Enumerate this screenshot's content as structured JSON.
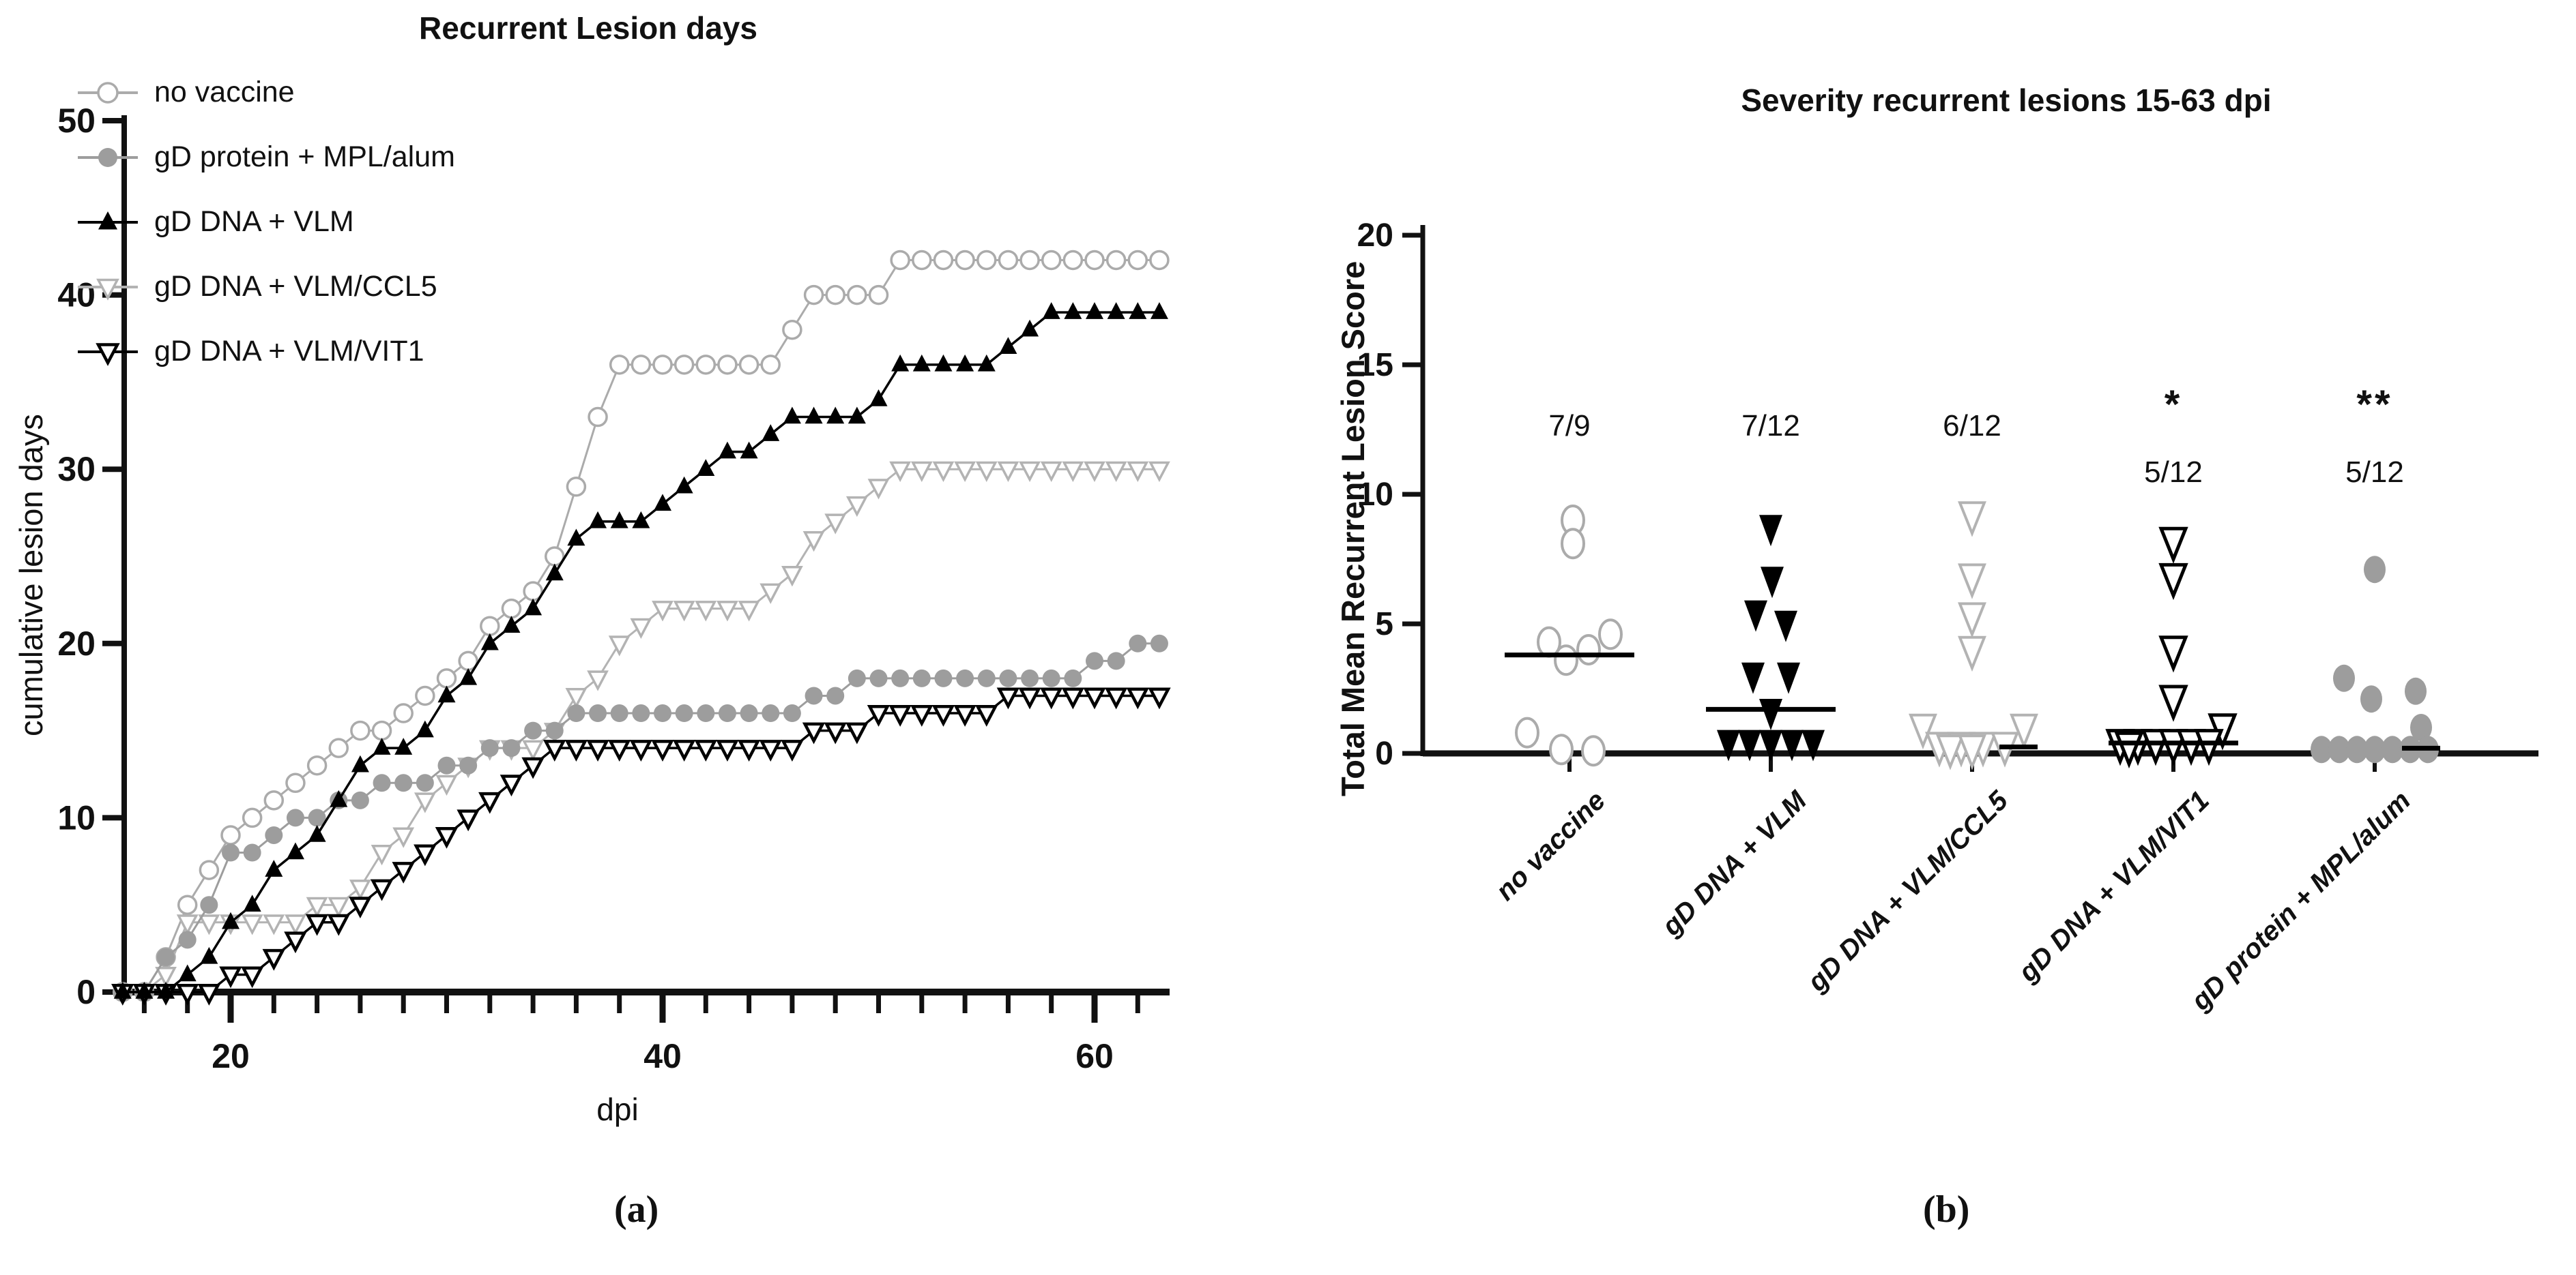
{
  "panels": {
    "a_label": "(a)",
    "b_label": "(b)"
  },
  "chart_data": [
    {
      "type": "line",
      "title": "Recurrent Lesion days",
      "xlabel": "dpi",
      "ylabel": "cumulative lesion days",
      "xlim": [
        14,
        64
      ],
      "ylim": [
        0,
        50
      ],
      "x_start": 15,
      "x_end": 63,
      "xticks_major": [
        20,
        40,
        60
      ],
      "xtick_minor_step": 2,
      "yticks": [
        0,
        10,
        20,
        30,
        40,
        50
      ],
      "grid": false,
      "legend_position": "top-left",
      "series": [
        {
          "name": "no vaccine",
          "marker": "circle-open",
          "color": "#ababab",
          "values": [
            0,
            0,
            2,
            5,
            7,
            9,
            10,
            11,
            12,
            13,
            14,
            15,
            15,
            16,
            17,
            18,
            19,
            21,
            22,
            23,
            25,
            29,
            33,
            36,
            36,
            36,
            36,
            36,
            36,
            36,
            36,
            38,
            40,
            40,
            40,
            40,
            42,
            42,
            42,
            42,
            42,
            42,
            42,
            42,
            42,
            42,
            42,
            42,
            42
          ]
        },
        {
          "name": "gD protein + MPL/alum",
          "marker": "circle-filled",
          "color": "#9d9d9d",
          "values": [
            0,
            0,
            2,
            3,
            5,
            8,
            8,
            9,
            10,
            10,
            11,
            11,
            12,
            12,
            12,
            13,
            13,
            14,
            14,
            15,
            15,
            16,
            16,
            16,
            16,
            16,
            16,
            16,
            16,
            16,
            16,
            16,
            17,
            17,
            18,
            18,
            18,
            18,
            18,
            18,
            18,
            18,
            18,
            18,
            18,
            19,
            19,
            20,
            20
          ]
        },
        {
          "name": "gD DNA + VLM",
          "marker": "triangle-up-filled",
          "color": "#000000",
          "values": [
            0,
            0,
            0,
            1,
            2,
            4,
            5,
            7,
            8,
            9,
            11,
            13,
            14,
            14,
            15,
            17,
            18,
            20,
            21,
            22,
            24,
            26,
            27,
            27,
            27,
            28,
            29,
            30,
            31,
            31,
            32,
            33,
            33,
            33,
            33,
            34,
            36,
            36,
            36,
            36,
            36,
            37,
            38,
            39,
            39,
            39,
            39,
            39,
            39
          ]
        },
        {
          "name": "gD DNA + VLM/CCL5",
          "marker": "triangle-down-open",
          "color": "#b3b3b3",
          "values": [
            0,
            0,
            1,
            4,
            4,
            4,
            4,
            4,
            4,
            5,
            5,
            6,
            8,
            9,
            11,
            12,
            13,
            14,
            14,
            14,
            15,
            17,
            18,
            20,
            21,
            22,
            22,
            22,
            22,
            22,
            23,
            24,
            26,
            27,
            28,
            29,
            30,
            30,
            30,
            30,
            30,
            30,
            30,
            30,
            30,
            30,
            30,
            30,
            30
          ]
        },
        {
          "name": "gD DNA + VLM/VIT1",
          "marker": "triangle-down-open",
          "color": "#000000",
          "values": [
            0,
            0,
            0,
            0,
            0,
            1,
            1,
            2,
            3,
            4,
            4,
            5,
            6,
            7,
            8,
            9,
            10,
            11,
            12,
            13,
            14,
            14,
            14,
            14,
            14,
            14,
            14,
            14,
            14,
            14,
            14,
            14,
            15,
            15,
            15,
            16,
            16,
            16,
            16,
            16,
            16,
            17,
            17,
            17,
            17,
            17,
            17,
            17,
            17
          ]
        }
      ]
    },
    {
      "type": "scatter",
      "title": "Severity recurrent lesions 15-63 dpi",
      "ylabel": "Total Mean Recurrent Lesion Score",
      "ylim": [
        0,
        20
      ],
      "yticks": [
        0,
        5,
        10,
        15,
        20
      ],
      "grid": false,
      "groups": [
        {
          "label": "no vaccine",
          "marker": "circle-open",
          "color": "#ababab",
          "annotation": "7/9",
          "sig": "",
          "median": 3.8,
          "points": [
            [
              9.0,
              5
            ],
            [
              8.1,
              5
            ],
            [
              4.6,
              60
            ],
            [
              4.3,
              -30
            ],
            [
              4.0,
              28
            ],
            [
              3.6,
              -5
            ],
            [
              0.8,
              -62
            ],
            [
              0.15,
              -12
            ],
            [
              0.1,
              35
            ]
          ]
        },
        {
          "label": "gD DNA + VLM",
          "marker": "triangle-down-filled",
          "color": "#000000",
          "annotation": "7/12",
          "sig": "",
          "median": 1.7,
          "points": [
            [
              8.6,
              0
            ],
            [
              6.6,
              2
            ],
            [
              5.3,
              -22
            ],
            [
              4.9,
              22
            ],
            [
              2.9,
              -26
            ],
            [
              2.9,
              26
            ],
            [
              1.5,
              0
            ],
            [
              0.3,
              -62
            ],
            [
              0.3,
              -31
            ],
            [
              0.3,
              0
            ],
            [
              0.3,
              31
            ],
            [
              0.3,
              62
            ]
          ]
        },
        {
          "label": "gD DNA + VLM/CCL5",
          "marker": "triangle-down-open",
          "color": "#b3b3b3",
          "annotation": "6/12",
          "sig": "",
          "median": 0.25,
          "points": [
            [
              9.1,
              0
            ],
            [
              6.7,
              0
            ],
            [
              5.2,
              0
            ],
            [
              3.9,
              0
            ],
            [
              0.9,
              -72
            ],
            [
              0.9,
              76
            ],
            [
              0.2,
              -48
            ],
            [
              0.2,
              -16
            ],
            [
              0.2,
              16
            ],
            [
              0.2,
              48
            ],
            [
              0.1,
              -32
            ],
            [
              0.1,
              0
            ]
          ]
        },
        {
          "label": "gD DNA + VLM/VIT1",
          "marker": "triangle-down-open",
          "color": "#000000",
          "annotation": "5/12",
          "sig": "*",
          "median": 0.4,
          "points": [
            [
              8.1,
              0
            ],
            [
              6.7,
              0
            ],
            [
              3.9,
              0
            ],
            [
              2.0,
              0
            ],
            [
              0.9,
              72
            ],
            [
              0.3,
              -78
            ],
            [
              0.3,
              -52
            ],
            [
              0.3,
              -26
            ],
            [
              0.3,
              0
            ],
            [
              0.3,
              26
            ],
            [
              0.3,
              52
            ],
            [
              0.2,
              -65
            ]
          ]
        },
        {
          "label": "gD protein + MPL/alum",
          "marker": "circle-filled",
          "color": "#9d9d9d",
          "annotation": "5/12",
          "sig": "**",
          "median": 0.2,
          "points": [
            [
              7.1,
              0
            ],
            [
              2.9,
              -45
            ],
            [
              2.4,
              60
            ],
            [
              2.1,
              -5
            ],
            [
              1.0,
              68
            ],
            [
              0.15,
              -78
            ],
            [
              0.15,
              -52
            ],
            [
              0.15,
              -26
            ],
            [
              0.15,
              0
            ],
            [
              0.15,
              26
            ],
            [
              0.15,
              52
            ],
            [
              0.15,
              78
            ]
          ]
        }
      ]
    }
  ]
}
